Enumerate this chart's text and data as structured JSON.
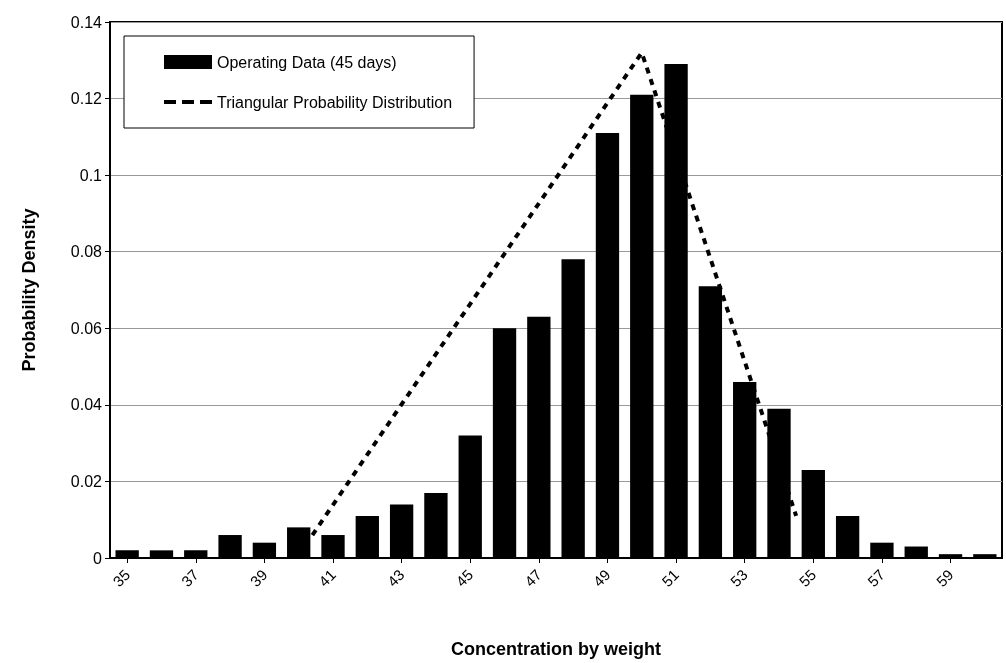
{
  "chart_data": {
    "type": "bar",
    "xlabel": "Concentration by weight",
    "ylabel": "Probability Density",
    "x": [
      35,
      36,
      37,
      38,
      39,
      40,
      41,
      42,
      43,
      44,
      45,
      46,
      47,
      48,
      49,
      50,
      51,
      52,
      53,
      54,
      55,
      56,
      57,
      58,
      59,
      60
    ],
    "xlim": [
      34.5,
      60.5
    ],
    "xticks": [
      35,
      37,
      39,
      41,
      43,
      45,
      47,
      49,
      51,
      53,
      55,
      57,
      59
    ],
    "ylim": [
      0,
      0.14
    ],
    "yticks": [
      0,
      0.02,
      0.04,
      0.06,
      0.08,
      0.1,
      0.12,
      0.14
    ],
    "series": [
      {
        "name": "Operating Data (45 days)",
        "color": "#000000",
        "values": [
          0.002,
          0.002,
          0.002,
          0.006,
          0.004,
          0.008,
          0.006,
          0.011,
          0.014,
          0.017,
          0.032,
          0.06,
          0.063,
          0.078,
          0.111,
          0.121,
          0.129,
          0.071,
          0.046,
          0.039,
          0.023,
          0.011,
          0.004,
          0.003,
          0.001,
          0.001
        ]
      },
      {
        "name": "Triangular Probability Distribution",
        "type": "line",
        "color": "#000000",
        "line_style": "dashed",
        "marker": "none",
        "x": [
          40.4,
          50.0,
          54.5
        ],
        "values": [
          0.006,
          0.132,
          0.011
        ]
      }
    ],
    "grid": "y",
    "legend": "top left"
  }
}
